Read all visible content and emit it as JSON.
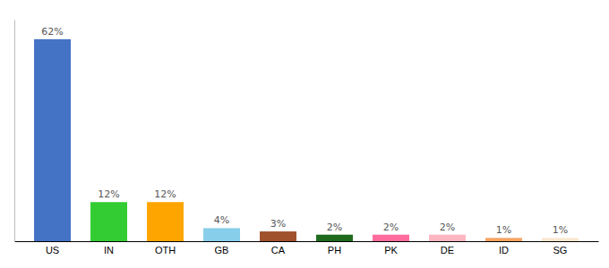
{
  "chart_data": {
    "type": "bar",
    "categories": [
      "US",
      "IN",
      "OTH",
      "GB",
      "CA",
      "PH",
      "PK",
      "DE",
      "ID",
      "SG"
    ],
    "values": [
      62,
      12,
      12,
      4,
      3,
      2,
      2,
      2,
      1,
      1
    ],
    "value_labels": [
      "62%",
      "12%",
      "12%",
      "4%",
      "3%",
      "2%",
      "2%",
      "2%",
      "1%",
      "1%"
    ],
    "colors": [
      "#4472C4",
      "#33CC33",
      "#FFA500",
      "#87CEEB",
      "#A0522D",
      "#1E6B1E",
      "#FF6B9D",
      "#FFB6C1",
      "#F4A460",
      "#FAE8D0"
    ],
    "ylim": [
      0,
      68
    ],
    "data_labels": true,
    "tick_labels": "x",
    "grid": false
  }
}
